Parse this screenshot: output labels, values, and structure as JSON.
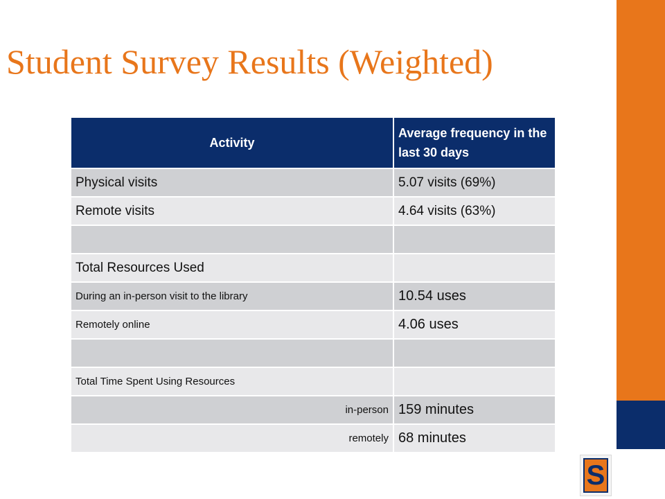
{
  "slide": {
    "title": "Student Survey Results (Weighted)"
  },
  "table": {
    "headers": [
      "Activity",
      "Average frequency in the last 30 days"
    ],
    "rows": [
      [
        "Physical visits",
        "5.07 visits (69%)"
      ],
      [
        "Remote visits",
        "4.64 visits (63%)"
      ],
      [
        "",
        ""
      ],
      [
        "Total Resources Used",
        ""
      ],
      [
        "During an in-person visit to the library",
        "10.54 uses"
      ],
      [
        "Remotely online",
        "4.06 uses"
      ],
      [
        "",
        ""
      ],
      [
        "Total Time Spent Using Resources",
        ""
      ],
      [
        "in-person",
        "159 minutes"
      ],
      [
        "remotely",
        "68 minutes"
      ]
    ]
  },
  "colors": {
    "accent_orange": "#E8761B",
    "navy": "#0B2D6B",
    "row_dark": "#CFD0D3",
    "row_light": "#E8E8EA"
  },
  "logo": {
    "letter": "S",
    "icon": "block-s-logo-icon"
  }
}
